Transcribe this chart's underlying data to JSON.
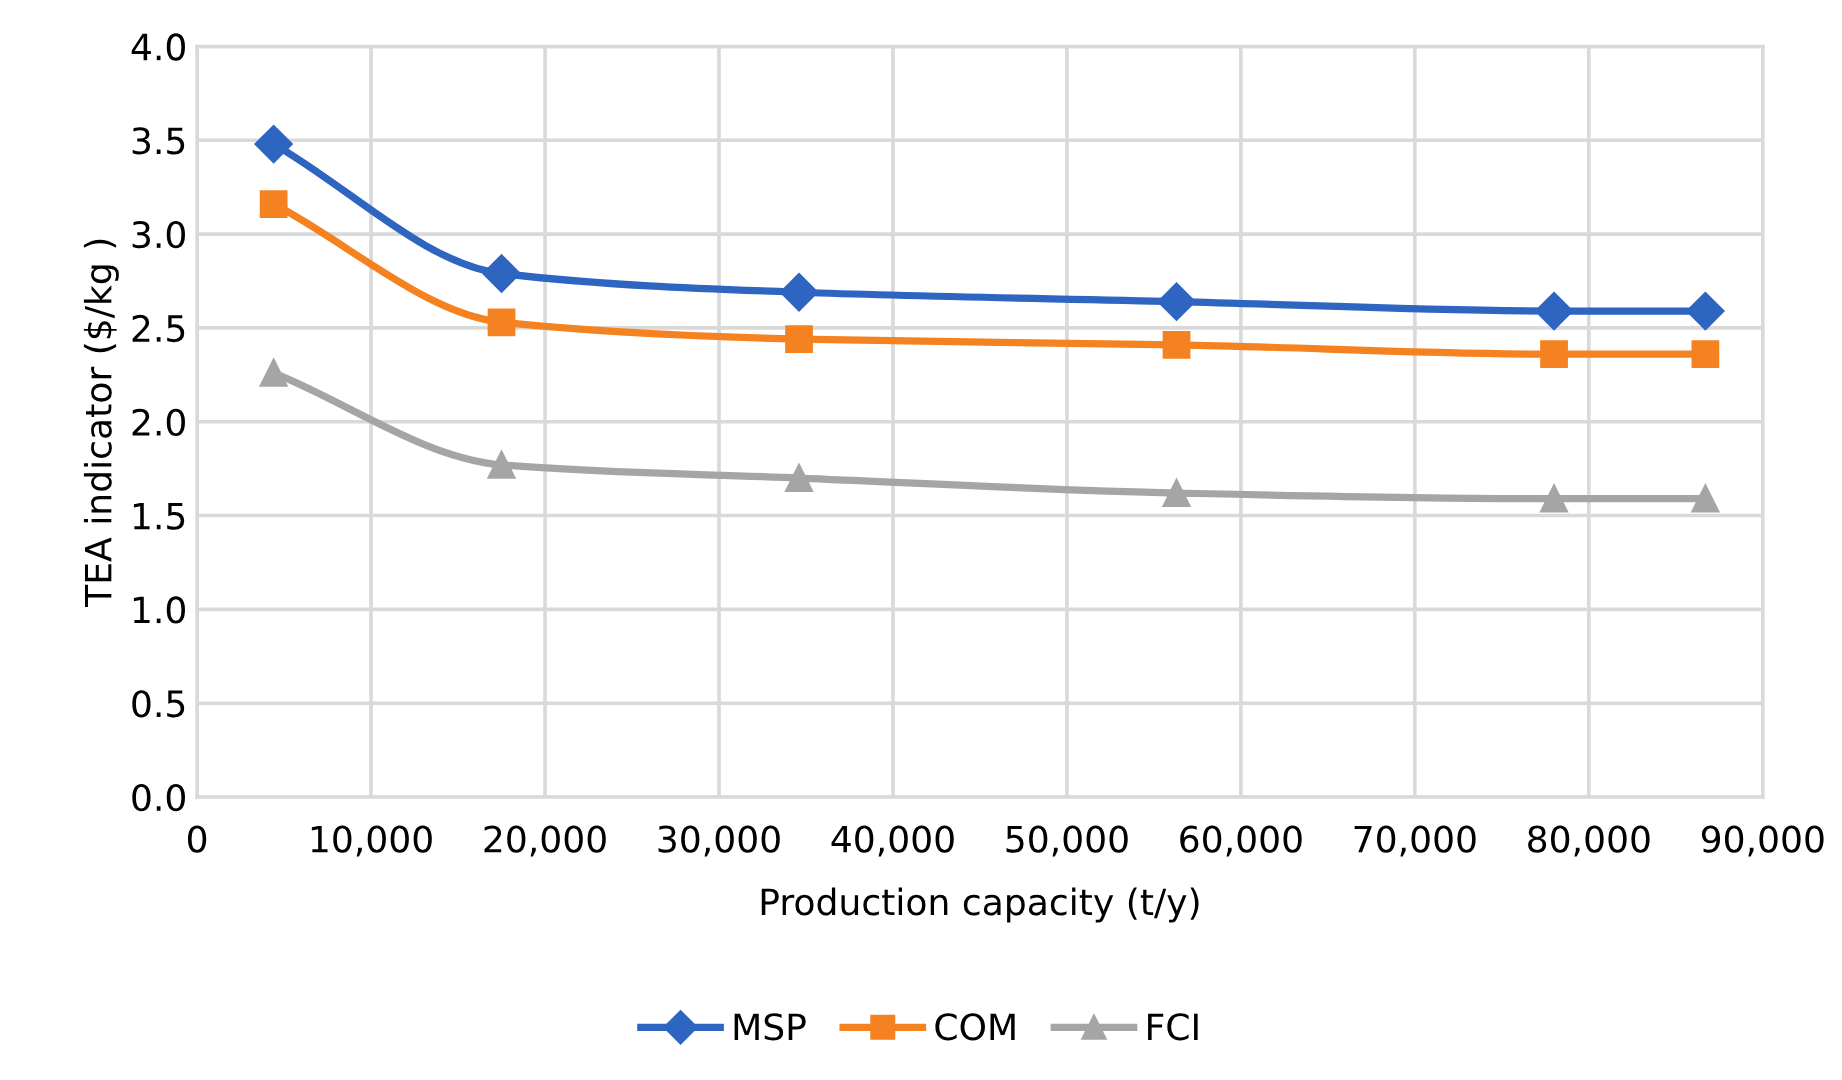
{
  "chart_data": {
    "type": "line",
    "xlabel": "Production capacity (t/y)",
    "ylabel": "TEA indicator ($/kg )",
    "x": [
      4400,
      17500,
      34600,
      56300,
      78000,
      86700
    ],
    "series": [
      {
        "name": "MSP",
        "color": "#2d65c1",
        "marker": "diamond",
        "values": [
          3.48,
          2.79,
          2.69,
          2.64,
          2.59,
          2.59
        ]
      },
      {
        "name": "COM",
        "color": "#f58220",
        "marker": "square",
        "values": [
          3.16,
          2.53,
          2.44,
          2.41,
          2.36,
          2.36
        ]
      },
      {
        "name": "FCI",
        "color": "#a5a5a5",
        "marker": "triangle",
        "values": [
          2.26,
          1.77,
          1.7,
          1.62,
          1.59,
          1.59
        ]
      }
    ],
    "xlim": [
      0,
      90000
    ],
    "xticks": [
      0,
      {
        "value": 10000,
        "label": "10,000"
      },
      {
        "value": 20000,
        "label": "20,000"
      },
      {
        "value": 30000,
        "label": "30,000"
      },
      {
        "value": 40000,
        "label": "40,000"
      },
      {
        "value": 50000,
        "label": "50,000"
      },
      {
        "value": 60000,
        "label": "60,000"
      },
      {
        "value": 70000,
        "label": "70,000"
      },
      {
        "value": 80000,
        "label": "80,000"
      },
      {
        "value": 90000,
        "label": "90,000"
      }
    ],
    "ylim": [
      0,
      4
    ],
    "yticks": [
      {
        "value": 0,
        "label": "0.0"
      },
      {
        "value": 0.5,
        "label": "0.5"
      },
      {
        "value": 1,
        "label": "1.0"
      },
      {
        "value": 1.5,
        "label": "1.5"
      },
      {
        "value": 2,
        "label": "2.0"
      },
      {
        "value": 2.5,
        "label": "2.5"
      },
      {
        "value": 3,
        "label": "3.0"
      },
      {
        "value": 3.5,
        "label": "3.5"
      },
      {
        "value": 4,
        "label": "4.0"
      }
    ],
    "grid": true,
    "legend": "bottom",
    "line_style": "solid"
  }
}
